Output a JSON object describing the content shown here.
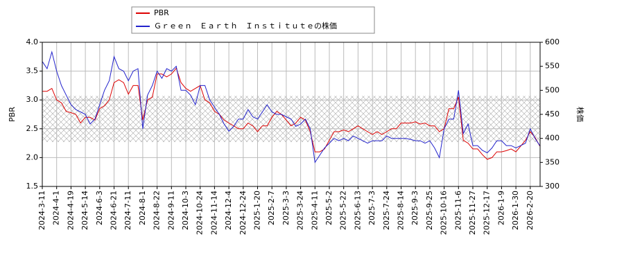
{
  "chart_data": {
    "type": "line",
    "categories": [
      "2024-3-11",
      null,
      null,
      "2024-4-1",
      null,
      null,
      "2024-4-19",
      null,
      null,
      "2024-5-14",
      null,
      null,
      "2024-6-3",
      null,
      null,
      "2024-6-21",
      null,
      null,
      "2024-7-11",
      null,
      null,
      "2024-8-1",
      null,
      null,
      "2024-8-22",
      null,
      null,
      "2024-9-11",
      null,
      null,
      "2024-10-3",
      null,
      null,
      "2024-10-24",
      null,
      null,
      "2024-11-14",
      null,
      null,
      "2024-12-4",
      null,
      null,
      "2024-12-24",
      null,
      null,
      "2025-1-20",
      null,
      null,
      "2025-2-7",
      null,
      null,
      "2025-3-3",
      null,
      null,
      "2025-3-24",
      null,
      null,
      "2025-4-11",
      null,
      null,
      "2025-5-2",
      null,
      null,
      "2025-5-22",
      null,
      null,
      "2025-6-13",
      null,
      null,
      "2025-7-3",
      null,
      null,
      "2025-7-24",
      null,
      null,
      "2025-8-14",
      null,
      null,
      "2025-9-3",
      null,
      null,
      "2025-9-25",
      null,
      null,
      "2025-10-16",
      null,
      null,
      "2025-11-6",
      null,
      null,
      "2025-11-27",
      null,
      null,
      "2025-12-17",
      null,
      null,
      "2026-1-9",
      null,
      null,
      "2026-1-30",
      null,
      null,
      "2026-2-20",
      null,
      null
    ],
    "series": [
      {
        "name": "PBR",
        "color": "#dd0000",
        "axis": "y",
        "values": [
          3.15,
          3.15,
          3.2,
          3.0,
          2.95,
          2.8,
          2.78,
          2.75,
          2.6,
          2.7,
          2.7,
          2.65,
          2.85,
          2.9,
          3.0,
          3.3,
          3.35,
          3.3,
          3.1,
          3.25,
          3.25,
          2.65,
          3.0,
          3.05,
          3.45,
          3.45,
          3.4,
          3.45,
          3.55,
          3.3,
          3.2,
          3.15,
          3.2,
          3.25,
          3.0,
          2.95,
          2.8,
          2.75,
          2.65,
          2.6,
          2.55,
          2.5,
          2.5,
          2.6,
          2.55,
          2.45,
          2.55,
          2.55,
          2.7,
          2.8,
          2.75,
          2.65,
          2.55,
          2.6,
          2.7,
          2.65,
          2.45,
          2.1,
          2.1,
          2.15,
          2.3,
          2.45,
          2.45,
          2.48,
          2.45,
          2.5,
          2.55,
          2.5,
          2.45,
          2.4,
          2.45,
          2.4,
          2.45,
          2.5,
          2.5,
          2.6,
          2.6,
          2.6,
          2.62,
          2.58,
          2.6,
          2.55,
          2.55,
          2.45,
          2.5,
          2.85,
          2.85,
          3.05,
          2.3,
          2.25,
          2.15,
          2.15,
          2.05,
          1.97,
          2.0,
          2.1,
          2.1,
          2.12,
          2.15,
          2.1,
          2.2,
          2.3,
          2.45,
          2.35,
          2.2
        ]
      },
      {
        "name": "Ｇｒｅｅｎ　Ｅａｒｔｈ　Ｉｎｓｔｉｔｕｔｅの株価",
        "color": "#2222cc",
        "axis": "y2",
        "values": [
          560,
          545,
          580,
          540,
          510,
          490,
          470,
          460,
          455,
          450,
          430,
          440,
          470,
          500,
          520,
          570,
          545,
          540,
          520,
          540,
          545,
          420,
          490,
          510,
          540,
          525,
          545,
          540,
          550,
          500,
          500,
          490,
          470,
          510,
          510,
          480,
          465,
          450,
          430,
          415,
          425,
          440,
          440,
          460,
          445,
          440,
          455,
          470,
          455,
          450,
          450,
          445,
          440,
          425,
          430,
          440,
          420,
          350,
          365,
          380,
          390,
          400,
          395,
          400,
          395,
          405,
          400,
          395,
          390,
          395,
          395,
          395,
          405,
          400,
          400,
          400,
          400,
          398,
          395,
          395,
          390,
          395,
          380,
          360,
          420,
          440,
          440,
          500,
          410,
          430,
          385,
          385,
          375,
          370,
          380,
          395,
          395,
          385,
          385,
          380,
          385,
          390,
          420,
          400,
          385
        ]
      }
    ],
    "ylabel": "PBR",
    "y2label": "株価",
    "ylim": [
      1.5,
      4.0
    ],
    "yticks": [
      1.5,
      {
        "value": 2.0,
        "label": "2.0"
      },
      2.5,
      {
        "value": 3.0,
        "label": "3.0"
      },
      3.5,
      {
        "value": 4.0,
        "label": "4.0"
      }
    ],
    "y2lim": [
      300,
      600
    ],
    "y2ticks": [
      300,
      350,
      400,
      450,
      500,
      550,
      600
    ],
    "shaded_range": [
      2.27,
      3.07
    ],
    "grid": true,
    "legend": "top"
  }
}
